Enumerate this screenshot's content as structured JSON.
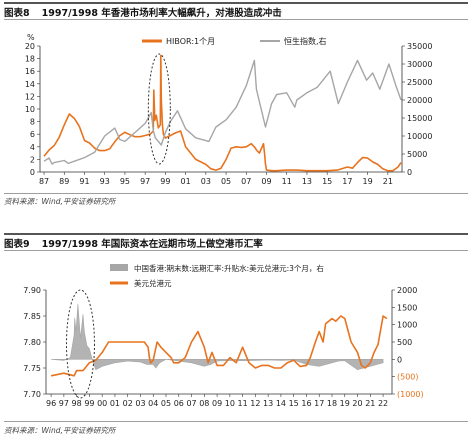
{
  "figure8": {
    "label": "图表8",
    "title": "1997/1998 年香港市场利率大幅飙升，对港股造成冲击",
    "source": "资料来源：Wind,平安证券研究所"
  },
  "figure9": {
    "label": "图表9",
    "title": "1997/1998 年国际资本在远期市场上做空港币汇率",
    "source": "资料来源：Wind,平安证券研究所"
  },
  "colors": {
    "orange": "#e8731e",
    "gray": "#a6a6a6",
    "axis": "#333333"
  },
  "chart_data": [
    {
      "type": "line",
      "y_unit_label": "%",
      "x_ticks": [
        "87",
        "89",
        "91",
        "93",
        "95",
        "97",
        "99",
        "01",
        "03",
        "05",
        "07",
        "09",
        "11",
        "13",
        "15",
        "17",
        "19",
        "21"
      ],
      "xlim": [
        1986.6,
        2022.4
      ],
      "ylim": [
        0,
        20
      ],
      "y_ticks": [
        0,
        2,
        4,
        6,
        8,
        10,
        12,
        14,
        16,
        18,
        20
      ],
      "y2lim": [
        0,
        35000
      ],
      "y2_ticks": [
        0,
        5000,
        10000,
        15000,
        20000,
        25000,
        30000,
        35000
      ],
      "legend_placement": "top-right",
      "series": [
        {
          "name": "HIBOR:1个月",
          "axis": "left",
          "color": "#e8731e",
          "x": [
            1987,
            1987.5,
            1988,
            1988.5,
            1989,
            1989.5,
            1990,
            1990.5,
            1991,
            1991.5,
            1992,
            1992.5,
            1993,
            1993.5,
            1994,
            1994.5,
            1995,
            1995.5,
            1996,
            1996.5,
            1997,
            1997.5,
            1997.8,
            1997.85,
            1997.95,
            1998.1,
            1998.3,
            1998.5,
            1998.55,
            1998.6,
            1998.7,
            1998.8,
            1999,
            1999.5,
            2000,
            2000.5,
            2001,
            2001.5,
            2002,
            2002.5,
            2003,
            2003.5,
            2004,
            2004.5,
            2005,
            2005.5,
            2006,
            2006.5,
            2007,
            2007.5,
            2007.9,
            2008,
            2008.3,
            2008.7,
            2008.8,
            2008.9,
            2009,
            2009.5,
            2010,
            2011,
            2012,
            2013,
            2014,
            2015,
            2016,
            2017,
            2017.5,
            2018,
            2018.5,
            2019,
            2019.5,
            2020,
            2020.5,
            2021,
            2021.5,
            2022,
            2022.3
          ],
          "values": [
            2.5,
            3.5,
            4.2,
            5.5,
            7.5,
            9.2,
            8.5,
            7.2,
            5.0,
            4.6,
            3.8,
            3.4,
            3.4,
            3.7,
            4.8,
            5.8,
            6.3,
            5.9,
            5.6,
            5.6,
            5.8,
            6.0,
            6.5,
            13.0,
            8.2,
            9.0,
            7.0,
            7.5,
            18.5,
            11.5,
            7.5,
            6.0,
            5.4,
            5.8,
            6.2,
            6.5,
            4.0,
            3.0,
            2.0,
            1.6,
            1.2,
            0.5,
            0.3,
            0.6,
            2.0,
            3.8,
            4.0,
            3.9,
            4.0,
            4.5,
            3.8,
            3.5,
            3.0,
            4.5,
            3.0,
            1.2,
            0.3,
            0.2,
            0.2,
            0.3,
            0.3,
            0.2,
            0.2,
            0.2,
            0.3,
            0.8,
            0.6,
            1.5,
            2.3,
            2.2,
            1.6,
            1.2,
            0.5,
            0.2,
            0.2,
            0.8,
            1.5
          ]
        },
        {
          "name": "恒生指数,右",
          "axis": "right",
          "color": "#a6a6a6",
          "x": [
            1987,
            1987.5,
            1987.8,
            1988,
            1989,
            1989.4,
            1990,
            1991,
            1992,
            1993,
            1994,
            1994.5,
            1995,
            1996,
            1997,
            1997.6,
            1997.8,
            1998,
            1998.6,
            1999,
            1999.5,
            2000.2,
            2001,
            2002,
            2003.3,
            2004,
            2005,
            2006,
            2007,
            2007.8,
            2008,
            2008.9,
            2009.5,
            2010,
            2011,
            2011.8,
            2012,
            2013,
            2014,
            2015.3,
            2016.1,
            2017,
            2018,
            2018.9,
            2019.5,
            2020.2,
            2021.1,
            2021.8,
            2022.3
          ],
          "values": [
            3000,
            3900,
            2200,
            2600,
            3200,
            2400,
            3000,
            4000,
            5500,
            10000,
            12200,
            9000,
            8500,
            11000,
            13500,
            16500,
            11500,
            9500,
            7500,
            11000,
            14000,
            17000,
            12000,
            9500,
            8500,
            12500,
            14500,
            18000,
            24000,
            31000,
            23000,
            12500,
            19000,
            21500,
            22000,
            18000,
            20000,
            22000,
            23500,
            28000,
            19000,
            25000,
            31000,
            25500,
            27500,
            23000,
            30000,
            24000,
            20000
          ]
        }
      ]
    },
    {
      "type": "line",
      "x_ticks": [
        "96",
        "97",
        "98",
        "99",
        "00",
        "01",
        "02",
        "03",
        "04",
        "05",
        "06",
        "07",
        "08",
        "09",
        "10",
        "11",
        "12",
        "13",
        "14",
        "15",
        "16",
        "17",
        "18",
        "19",
        "20",
        "21",
        "22"
      ],
      "xlim": [
        1995.6,
        2022.7
      ],
      "ylim": [
        7.7,
        7.9
      ],
      "y_ticks": [
        7.7,
        7.75,
        7.8,
        7.85,
        7.9
      ],
      "y2lim": [
        -1000,
        2000
      ],
      "y2_ticks": [
        "(1000)",
        "(500)",
        "0",
        "500",
        "1000",
        "1500",
        "2000"
      ],
      "legend_placement": "top",
      "series": [
        {
          "name": "中国香港:期末数:远期汇率:升贴水:美元兑港元:3个月，右",
          "axis": "right",
          "color": "#a6a6a6",
          "x": [
            1996,
            1997,
            1997.5,
            1997.8,
            1997.85,
            1997.95,
            1998.1,
            1998.3,
            1998.5,
            1998.6,
            1998.8,
            1999,
            1999.3,
            1999.5,
            2000,
            2001,
            2002,
            2003,
            2003.5,
            2004,
            2004.2,
            2004.5,
            2005,
            2006,
            2007,
            2008,
            2008.5,
            2009,
            2010,
            2011,
            2012,
            2013,
            2014,
            2015,
            2016,
            2017,
            2018,
            2018.5,
            2019,
            2020,
            2021,
            2022
          ],
          "values": [
            0,
            -30,
            50,
            700,
            1200,
            800,
            1600,
            600,
            1300,
            800,
            400,
            300,
            -100,
            -300,
            -200,
            -100,
            -50,
            -80,
            -150,
            -150,
            -250,
            -100,
            0,
            -50,
            -100,
            -200,
            -150,
            -50,
            -30,
            -40,
            -30,
            -20,
            -30,
            -20,
            -150,
            -200,
            -100,
            -50,
            -40,
            -300,
            -200,
            -100
          ]
        },
        {
          "name": "美元兑港元",
          "axis": "left",
          "color": "#e8731e",
          "x": [
            1996,
            1997,
            1997.8,
            1998,
            1998.5,
            1999,
            1999.5,
            2000,
            2000.5,
            2001,
            2001.5,
            2002,
            2003,
            2003.3,
            2003.6,
            2003.7,
            2003.8,
            2004,
            2004.3,
            2004.6,
            2005,
            2005.4,
            2005.6,
            2006,
            2006.5,
            2007,
            2007.5,
            2008,
            2008.3,
            2008.6,
            2009,
            2009.5,
            2010,
            2010.5,
            2011,
            2011.5,
            2012,
            2012.5,
            2013,
            2013.5,
            2014,
            2014.5,
            2015,
            2015.5,
            2016,
            2016.3,
            2016.7,
            2017,
            2017.3,
            2017.5,
            2018,
            2018.3,
            2018.7,
            2019,
            2019.5,
            2020,
            2020.3,
            2020.6,
            2021,
            2021.3,
            2021.6,
            2022,
            2022.3
          ],
          "values": [
            7.735,
            7.74,
            7.735,
            7.745,
            7.745,
            7.76,
            7.765,
            7.78,
            7.8,
            7.8,
            7.8,
            7.8,
            7.8,
            7.8,
            7.79,
            7.77,
            7.76,
            7.765,
            7.8,
            7.79,
            7.78,
            7.77,
            7.76,
            7.76,
            7.77,
            7.8,
            7.82,
            7.79,
            7.76,
            7.78,
            7.755,
            7.755,
            7.77,
            7.76,
            7.79,
            7.76,
            7.75,
            7.755,
            7.755,
            7.75,
            7.75,
            7.76,
            7.765,
            7.753,
            7.755,
            7.77,
            7.8,
            7.82,
            7.8,
            7.835,
            7.845,
            7.84,
            7.85,
            7.845,
            7.8,
            7.78,
            7.755,
            7.75,
            7.76,
            7.78,
            7.795,
            7.85,
            7.845
          ]
        }
      ]
    }
  ]
}
